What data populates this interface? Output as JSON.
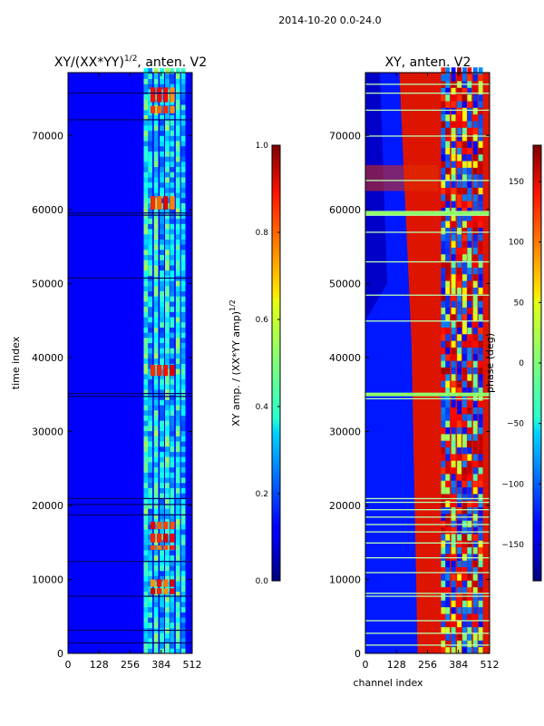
{
  "suptitle": "2014-10-20 0.0-24.0",
  "chart_data": [
    {
      "type": "heatmap",
      "title": "XY/(XX*YY)",
      "title_superscript": "1/2",
      "title_suffix": ", anten. V2",
      "xlabel": "",
      "ylabel": "time index",
      "xlim": [
        0,
        512
      ],
      "ylim": [
        0,
        78500
      ],
      "xticks": [
        0,
        128,
        256,
        384,
        512
      ],
      "yticks": [
        0,
        10000,
        20000,
        30000,
        40000,
        50000,
        60000,
        70000
      ],
      "colormap": "jet",
      "colorbar": {
        "label": "XY amp. / (XX*YY amp)",
        "label_superscript": "1/2",
        "range": [
          0.0,
          1.0
        ],
        "ticks": [
          "0.0",
          "0.2",
          "0.4",
          "0.6",
          "0.8",
          "1.0"
        ]
      }
    },
    {
      "type": "heatmap",
      "title": "XY, anten. V2",
      "xlabel": "channel index",
      "ylabel": "",
      "xlim": [
        0,
        512
      ],
      "ylim": [
        0,
        78500
      ],
      "xticks": [
        0,
        128,
        256,
        384,
        512
      ],
      "yticks": [
        0,
        10000,
        20000,
        30000,
        40000,
        50000,
        60000,
        70000
      ],
      "colormap": "jet",
      "colorbar": {
        "label": "phase (deg)",
        "range": [
          -180,
          180
        ],
        "ticks": [
          "−150",
          "−100",
          "−50",
          "0",
          "50",
          "100",
          "150"
        ]
      }
    }
  ]
}
